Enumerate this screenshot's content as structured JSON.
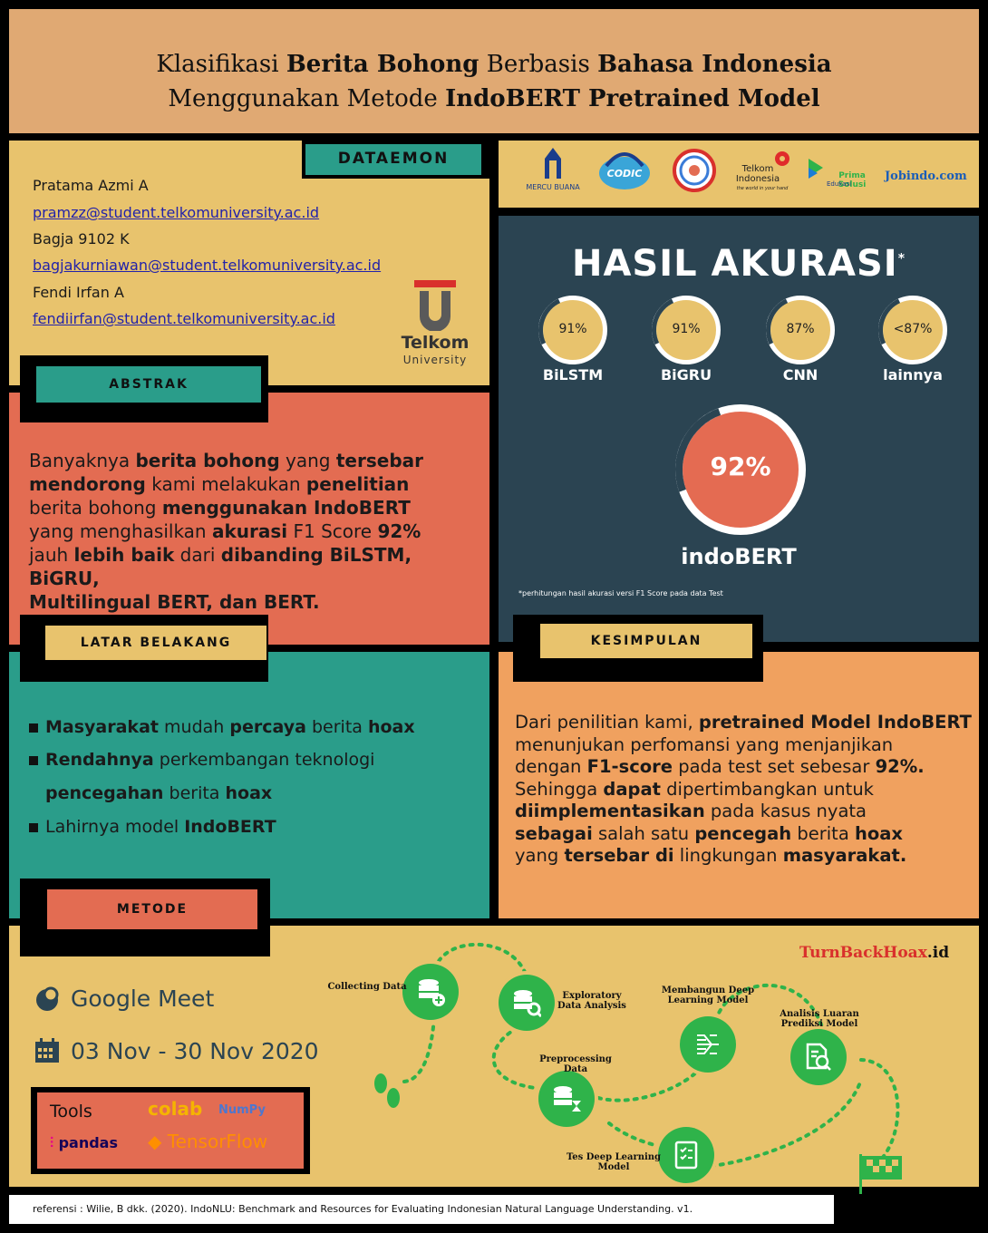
{
  "header": {
    "line1": [
      {
        "t": "Klasifikasi ",
        "b": false
      },
      {
        "t": "Berita Bohong",
        "b": true
      },
      {
        "t": " Berbasis ",
        "b": false
      },
      {
        "t": "Bahasa Indonesia",
        "b": true
      }
    ],
    "line2": [
      {
        "t": "Menggunakan Metode ",
        "b": false
      },
      {
        "t": "IndoBERT Pretrained Model",
        "b": true
      }
    ]
  },
  "team": {
    "tab": "DATAEMON",
    "authors": [
      {
        "name": "Pratama Azmi A",
        "email": "pramzz@student.telkomuniversity.ac.id"
      },
      {
        "name": "Bagja 9102 K",
        "email": "bagjakurniawan@student.telkomuniversity.ac.id"
      },
      {
        "name": "Fendi Irfan A",
        "email": "fendiirfan@student.telkomuniversity.ac.id"
      }
    ],
    "university_logo": {
      "line1": "Telkom",
      "line2": "University"
    }
  },
  "logos": {
    "mercu_buana": "MERCU BUANA",
    "codic": "CODIC",
    "telkom_indonesia": "Telkom Indonesia",
    "telkom_tagline": "the world in your hand",
    "prima": "Prima Solusi",
    "prima_sub": "Edukasi",
    "jobindo": "Jobindo.com"
  },
  "accuracy": {
    "title": "HASIL AKURASI",
    "title_mark": "*",
    "models": [
      {
        "value": "91%",
        "label": "BiLSTM"
      },
      {
        "value": "91%",
        "label": "BiGRU"
      },
      {
        "value": "87%",
        "label": "CNN"
      },
      {
        "value": "<87%",
        "label": "lainnya"
      }
    ],
    "best": {
      "value": "92%",
      "label": "indoBERT"
    },
    "note": "*perhitungan hasil akurasi versi F1 Score pada data Test"
  },
  "abstrak": {
    "tab": "ABSTRAK",
    "text": [
      [
        {
          "t": "Banyaknya ",
          "b": false
        },
        {
          "t": "berita bohong",
          "b": true
        },
        {
          "t": " yang ",
          "b": false
        },
        {
          "t": "tersebar",
          "b": true
        }
      ],
      [
        {
          "t": "mendorong",
          "b": true
        },
        {
          "t": " kami melakukan ",
          "b": false
        },
        {
          "t": "penelitian",
          "b": true
        }
      ],
      [
        {
          "t": "berita bohong ",
          "b": false
        },
        {
          "t": "menggunakan IndoBERT",
          "b": true
        }
      ],
      [
        {
          "t": "yang menghasilkan ",
          "b": false
        },
        {
          "t": "akurasi",
          "b": true
        },
        {
          "t": " F1 Score ",
          "b": false
        },
        {
          "t": "92%",
          "b": true
        }
      ],
      [
        {
          "t": "jauh ",
          "b": false
        },
        {
          "t": "lebih baik",
          "b": true
        },
        {
          "t": " dari ",
          "b": false
        },
        {
          "t": "dibanding BiLSTM, BiGRU,",
          "b": true
        }
      ],
      [
        {
          "t": "Multilingual BERT, dan BERT.",
          "b": true
        }
      ]
    ]
  },
  "latar": {
    "tab": "LATAR BELAKANG",
    "items": [
      [
        {
          "t": "Masyarakat",
          "b": true
        },
        {
          "t": " mudah ",
          "b": false
        },
        {
          "t": "percaya",
          "b": true
        },
        {
          "t": " berita ",
          "b": false
        },
        {
          "t": "hoax",
          "b": true
        }
      ],
      [
        {
          "t": "Rendahnya",
          "b": true
        },
        {
          "t": " perkembangan teknologi",
          "b": false
        }
      ],
      [
        {
          "t": "pencegahan",
          "b": true
        },
        {
          "t": " berita ",
          "b": false
        },
        {
          "t": "hoax",
          "b": true
        }
      ],
      [
        {
          "t": "Lahirnya model ",
          "b": false
        },
        {
          "t": "IndoBERT",
          "b": true
        }
      ]
    ]
  },
  "kesimpulan": {
    "tab": "KESIMPULAN",
    "text": [
      [
        {
          "t": "Dari penilitian kami, ",
          "b": false
        },
        {
          "t": "pretrained Model IndoBERT",
          "b": true
        }
      ],
      [
        {
          "t": "menunjukan perfomansi yang menjanjikan",
          "b": false
        }
      ],
      [
        {
          "t": "dengan ",
          "b": false
        },
        {
          "t": "F1-score",
          "b": true
        },
        {
          "t": " pada test set sebesar ",
          "b": false
        },
        {
          "t": "92%.",
          "b": true
        }
      ],
      [
        {
          "t": "Sehingga ",
          "b": false
        },
        {
          "t": "dapat",
          "b": true
        },
        {
          "t": " dipertimbangkan untuk",
          "b": false
        }
      ],
      [
        {
          "t": "diimplementasikan",
          "b": true
        },
        {
          "t": " pada kasus nyata",
          "b": false
        }
      ],
      [
        {
          "t": "sebagai",
          "b": true
        },
        {
          "t": " salah satu ",
          "b": false
        },
        {
          "t": "pencegah",
          "b": true
        },
        {
          "t": " berita ",
          "b": false
        },
        {
          "t": "hoax",
          "b": true
        }
      ],
      [
        {
          "t": "yang ",
          "b": false
        },
        {
          "t": "tersebar di",
          "b": true
        },
        {
          "t": " lingkungan ",
          "b": false
        },
        {
          "t": "masyarakat.",
          "b": true
        }
      ]
    ]
  },
  "metode": {
    "tab": "METODE",
    "platform": "Google Meet",
    "dates": "03 Nov - 30 Nov 2020",
    "tools_title": "Tools",
    "tools": [
      "colab",
      "NumPy",
      "pandas",
      "TensorFlow"
    ],
    "turnback": {
      "a": "TurnBack",
      "b": "Hoax",
      ".id": ".id"
    },
    "steps": [
      "Collecting Data",
      "Exploratory Data Analysis",
      "Preprocessing  Data",
      "Membangun Deep Learning Model",
      "Tes Deep Learning Model",
      "Analisis Luaran Prediksi Model"
    ]
  },
  "reference": "referensi : Wilie, B dkk. (2020). IndoNLU: Benchmark and Resources for Evaluating Indonesian Natural Language Understanding. v1.",
  "colors": {
    "header": "#e0a973",
    "mustard": "#e8c36d",
    "teal": "#2a9d8a",
    "coral": "#e36c52",
    "navy": "#2b4452",
    "orange": "#f0a15f",
    "green": "#2fb34a"
  }
}
